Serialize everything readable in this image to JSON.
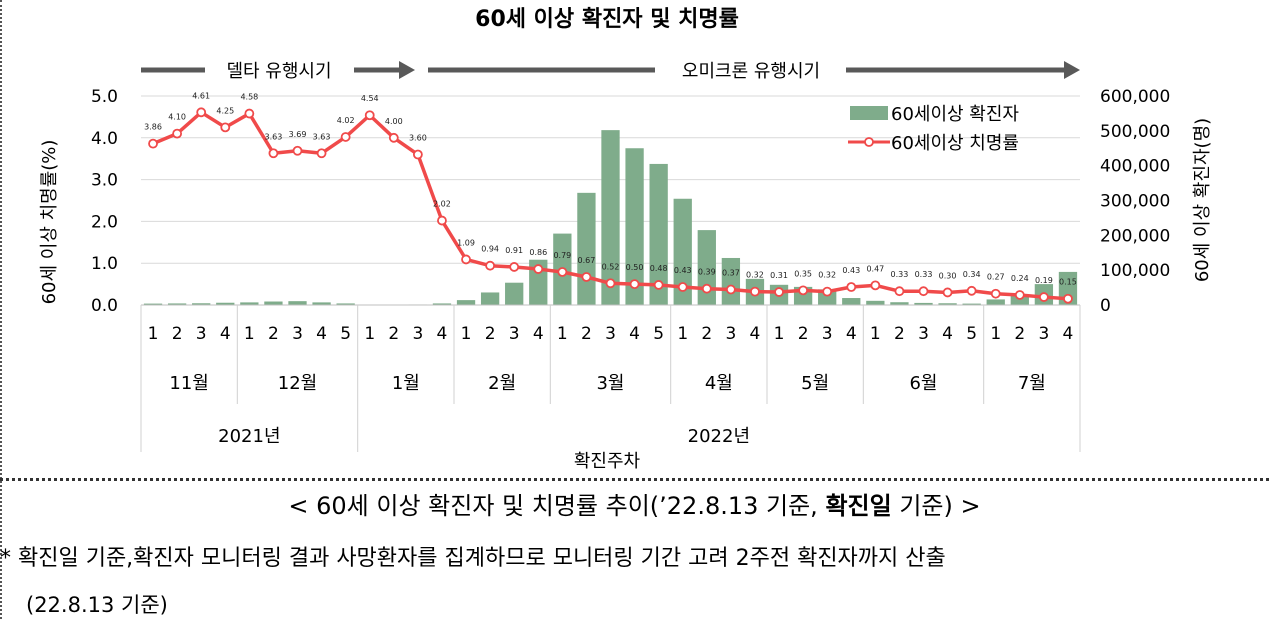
{
  "chart_data": {
    "type": "bar+line",
    "title": "60세 이상 확진자 및 치명률",
    "period_labels": {
      "delta": "델타 유행시기",
      "omicron": "오미크론 유행시기"
    },
    "y_left": {
      "label": "60세 이상 치명률(%)",
      "ticks": [
        "0.0",
        "1.0",
        "2.0",
        "3.0",
        "4.0",
        "5.0"
      ],
      "range": [
        0,
        5
      ]
    },
    "y_right": {
      "label": "60세 이상 확진자(명)",
      "ticks": [
        "0",
        "100,000",
        "200,000",
        "300,000",
        "400,000",
        "500,000",
        "600,000"
      ],
      "range": [
        0,
        600000
      ]
    },
    "legend": {
      "bar": "60세이상 확진자",
      "line": "60세이상 치명률"
    },
    "xlabel": "확진주차",
    "weeks": [
      "1",
      "2",
      "3",
      "4",
      "1",
      "2",
      "3",
      "4",
      "5",
      "1",
      "2",
      "3",
      "4",
      "1",
      "2",
      "3",
      "4",
      "1",
      "2",
      "3",
      "4",
      "5",
      "1",
      "2",
      "3",
      "4",
      "1",
      "2",
      "3",
      "4",
      "1",
      "2",
      "3",
      "4",
      "5",
      "1",
      "2",
      "3",
      "4"
    ],
    "months": [
      {
        "label": "11월",
        "span": 4
      },
      {
        "label": "12월",
        "span": 5
      },
      {
        "label": "1월",
        "span": 4
      },
      {
        "label": "2월",
        "span": 4
      },
      {
        "label": "3월",
        "span": 5
      },
      {
        "label": "4월",
        "span": 4
      },
      {
        "label": "5월",
        "span": 4
      },
      {
        "label": "6월",
        "span": 5
      },
      {
        "label": "7월",
        "span": 4
      }
    ],
    "years": [
      {
        "label": "2021년",
        "span": 9
      },
      {
        "label": "2022년",
        "span": 30
      }
    ],
    "series": [
      {
        "name": "60세이상 확진자",
        "type": "bar",
        "axis": "right",
        "color": "#7fac8b",
        "values": [
          4000,
          4500,
          5000,
          6500,
          7500,
          10000,
          11000,
          7500,
          4500,
          1000,
          1000,
          1500,
          4500,
          14000,
          36000,
          64000,
          130000,
          205000,
          322000,
          502000,
          450000,
          405000,
          305000,
          215000,
          135000,
          75000,
          58000,
          52000,
          45000,
          20000,
          12000,
          8000,
          6000,
          5000,
          4000,
          16000,
          26000,
          60000,
          95000
        ]
      },
      {
        "name": "60세이상 치명률",
        "type": "line",
        "axis": "left",
        "color": "#f04a4a",
        "values": [
          3.86,
          4.1,
          4.61,
          4.25,
          4.58,
          3.63,
          3.69,
          3.63,
          4.02,
          4.54,
          4.0,
          3.6,
          2.02,
          1.09,
          0.94,
          0.91,
          0.86,
          0.79,
          0.67,
          0.52,
          0.5,
          0.48,
          0.43,
          0.39,
          0.37,
          0.32,
          0.31,
          0.35,
          0.32,
          0.43,
          0.47,
          0.33,
          0.33,
          0.3,
          0.34,
          0.27,
          0.24,
          0.19,
          0.15
        ],
        "labels": [
          "3.86",
          "4.10",
          "4.61",
          "4.25",
          "4.58",
          "3.63",
          "3.69",
          "3.63",
          "4.02",
          "4.54",
          "4.00",
          "3.60",
          "2.02",
          "1.09",
          "0.94",
          "0.91",
          "0.86",
          "0.79",
          "0.67",
          "0.52",
          "0.50",
          "0.48",
          "0.43",
          "0.39",
          "0.37",
          "0.32",
          "0.31",
          "0.35",
          "0.32",
          "0.43",
          "0.47",
          "0.33",
          "0.33",
          "0.30",
          "0.34",
          "0.27",
          "0.24",
          "0.19",
          "0.15"
        ]
      }
    ]
  },
  "caption": {
    "prefix": "< 60세 이상 확진자 및 치명률 추이(’22.8.13 기준, ",
    "bold": "확진일",
    "suffix": " 기준) >"
  },
  "note": {
    "line1": "* 확진일 기준,확진자 모니터링 결과 사망환자를 집계하므로 모니터링 기간 고려 2주전 확진자까지 산출",
    "line2": "(22.8.13 기준)"
  }
}
